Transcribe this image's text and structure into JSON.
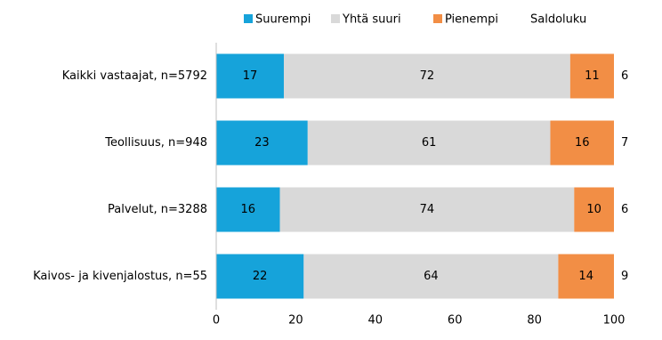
{
  "chart_data": {
    "type": "stacked-bar-horizontal",
    "categories": [
      "Kaikki vastaajat, n=5792",
      "Teollisuus, n=948",
      "Palvelut, n=3288",
      "Kaivos- ja kivenjalostus, n=55"
    ],
    "series": [
      {
        "name": "Suurempi",
        "color": "#16a3da",
        "values": [
          17,
          23,
          16,
          22
        ]
      },
      {
        "name": "Yhtä suuri",
        "color": "#d9d9d9",
        "values": [
          72,
          61,
          74,
          64
        ]
      },
      {
        "name": "Pienempi",
        "color": "#f28e45",
        "values": [
          11,
          16,
          10,
          14
        ]
      }
    ],
    "balance": {
      "name": "Saldoluku",
      "values": [
        6,
        7,
        6,
        9
      ]
    },
    "xlim": [
      0,
      100
    ],
    "xticks": [
      0,
      20,
      40,
      60,
      80,
      100
    ]
  }
}
